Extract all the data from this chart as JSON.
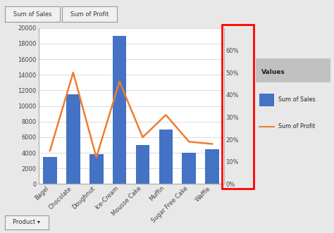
{
  "categories": [
    "Bagel",
    "Chocolate",
    "Doughnut",
    "Ice-Cream",
    "Mousse Cake",
    "Muffin",
    "Sugar Free Cake",
    "Waffle"
  ],
  "sales": [
    3500,
    11500,
    3800,
    19000,
    5000,
    7000,
    4000,
    4500
  ],
  "profit_pct": [
    0.15,
    0.5,
    0.12,
    0.46,
    0.21,
    0.31,
    0.19,
    0.18
  ],
  "bar_color": "#4472C4",
  "line_color": "#ED7D31",
  "left_ylim": [
    0,
    20000
  ],
  "left_yticks": [
    0,
    2000,
    4000,
    6000,
    8000,
    10000,
    12000,
    14000,
    16000,
    18000,
    20000
  ],
  "right_ylim": [
    0,
    0.7
  ],
  "right_yticks": [
    0.0,
    0.1,
    0.2,
    0.3,
    0.4,
    0.5,
    0.6
  ],
  "right_yticklabels": [
    "0%",
    "10%",
    "20%",
    "30%",
    "40%",
    "50%",
    "60%"
  ],
  "bg_color": "#E8E8E8",
  "plot_bg_color": "#FFFFFF",
  "legend_title": "Values",
  "legend_sales": "Sum of Sales",
  "legend_profit": "Sum of Profit",
  "top_btn1": "Sum of Sales",
  "top_btn2": "Sum of Profit",
  "bottom_btn": "Product ▾"
}
